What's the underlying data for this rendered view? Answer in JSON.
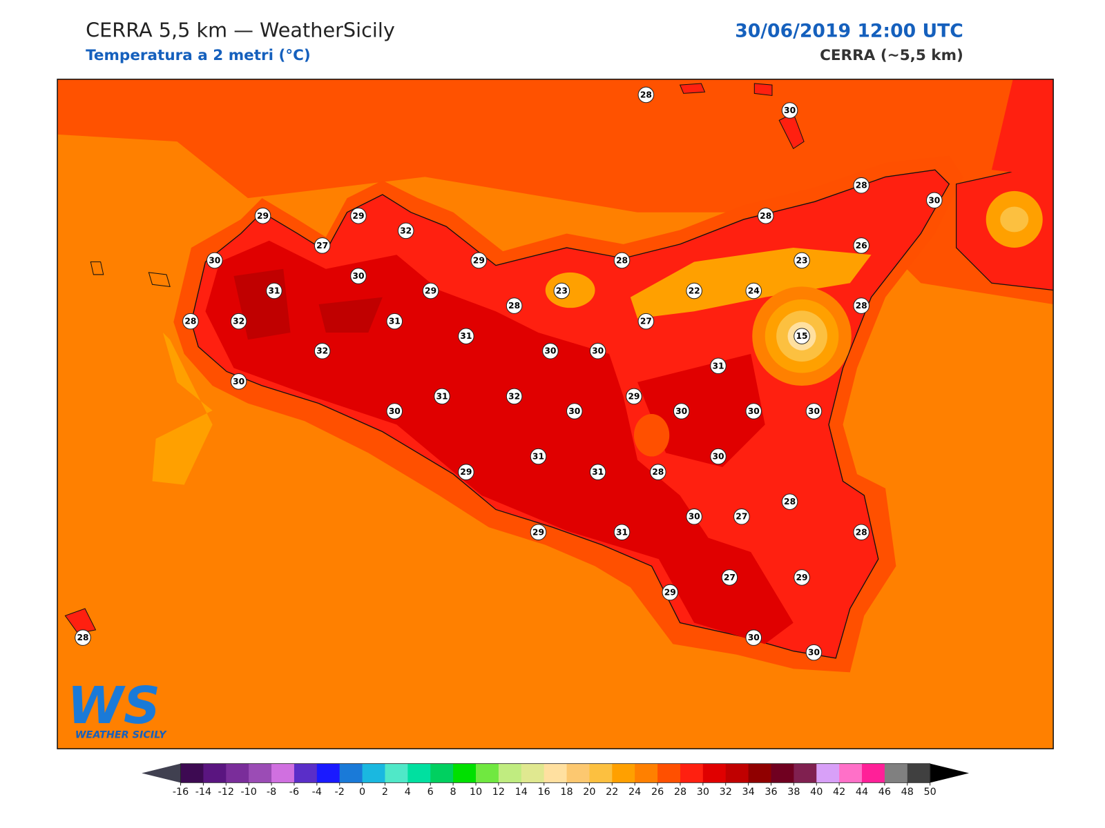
{
  "header": {
    "title": "CERRA 5,5 km — WeatherSicily",
    "subtitle": "Temperatura a 2 metri (°C)",
    "date": "30/06/2019 12:00 UTC",
    "model": "CERRA (~5,5 km)"
  },
  "stations": [
    28,
    30,
    28,
    30,
    29,
    29,
    32,
    28,
    27,
    26,
    30,
    29,
    28,
    23,
    30,
    31,
    29,
    23,
    22,
    24,
    28,
    28,
    28,
    32,
    31,
    27,
    31,
    15,
    32,
    30,
    30,
    31,
    30,
    31,
    32,
    29,
    30,
    30,
    30,
    30,
    30,
    30,
    31,
    29,
    31,
    28,
    28,
    27,
    30,
    29,
    31,
    28,
    27,
    29,
    29,
    28,
    30,
    30
  ],
  "colorbar": {
    "ticks": [
      -16,
      -14,
      -12,
      -10,
      -8,
      -6,
      -4,
      -2,
      0,
      2,
      4,
      6,
      8,
      10,
      12,
      14,
      16,
      18,
      20,
      22,
      24,
      26,
      28,
      30,
      32,
      34,
      36,
      38,
      40,
      42,
      44,
      46,
      48,
      50
    ],
    "colors": [
      "#3d0a52",
      "#5a1580",
      "#7a2d9a",
      "#9b4cb5",
      "#d070e0",
      "#5a2ec8",
      "#1a1aff",
      "#1a7ad8",
      "#1ab8e0",
      "#50e8c8",
      "#00e0a0",
      "#00d060",
      "#00e000",
      "#70e840",
      "#c0ec80",
      "#e0e890",
      "#ffe0a0",
      "#fcc870",
      "#fcc040",
      "#ffa000",
      "#ff8000",
      "#ff5000",
      "#ff2010",
      "#e00000",
      "#c00000",
      "#900000",
      "#700020",
      "#802050",
      "#d8a0f8",
      "#ff70c8",
      "#ff2098",
      "#808080",
      "#404040"
    ],
    "under_color": "#404050",
    "over_color": "#000000"
  },
  "logo": {
    "mark": "WS",
    "name": "WEATHER SICILY"
  }
}
